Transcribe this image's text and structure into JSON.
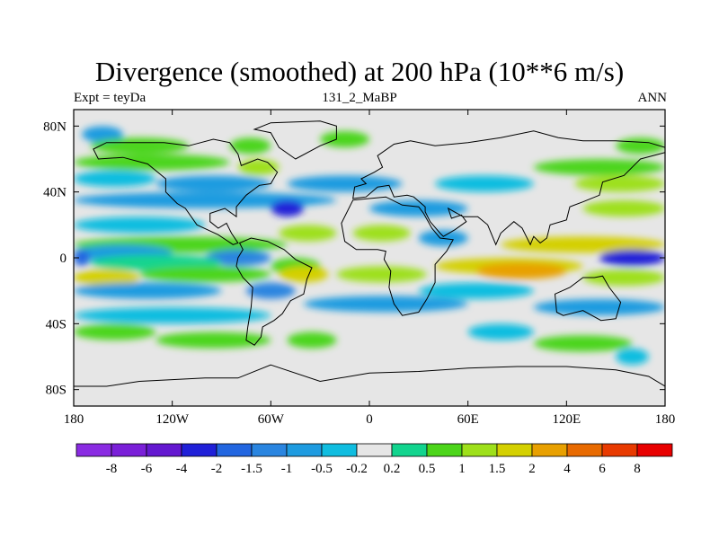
{
  "title": "Divergence (smoothed) at 200 hPa (10**6 m/s)",
  "subtitle_left": "Expt = teyDa",
  "subtitle_center": "131_2_MaBP",
  "subtitle_right": "ANN",
  "axes": {
    "lon_ticks": [
      {
        "lon": -180,
        "label": "180"
      },
      {
        "lon": -120,
        "label": "120W"
      },
      {
        "lon": -60,
        "label": "60W"
      },
      {
        "lon": 0,
        "label": "0"
      },
      {
        "lon": 60,
        "label": "60E"
      },
      {
        "lon": 120,
        "label": "120E"
      },
      {
        "lon": 180,
        "label": "180"
      }
    ],
    "lat_ticks": [
      {
        "lat": 80,
        "label": "80N"
      },
      {
        "lat": 40,
        "label": "40N"
      },
      {
        "lat": 0,
        "label": "0"
      },
      {
        "lat": -40,
        "label": "40S"
      },
      {
        "lat": -80,
        "label": "80S"
      }
    ],
    "lon_range": [
      -180,
      180
    ],
    "lat_range": [
      -90,
      90
    ]
  },
  "colorbar": {
    "colors": [
      "#8a2be2",
      "#7a1fd8",
      "#6418d0",
      "#2020d8",
      "#2266e0",
      "#2a85e0",
      "#1e9be0",
      "#10bde0",
      "#e6e6e6",
      "#12d48e",
      "#4cd51a",
      "#9ee01a",
      "#d4d000",
      "#e8a000",
      "#e86a00",
      "#e83a00",
      "#e80000"
    ],
    "labels": [
      "-8",
      "-6",
      "-4",
      "-2",
      "-1.5",
      "-1",
      "-0.5",
      "-0.2",
      "0.2",
      "0.5",
      "1",
      "1.5",
      "2",
      "4",
      "6",
      "8"
    ]
  },
  "field_bands": [
    {
      "lat": 75,
      "lon": [
        -175,
        -150
      ],
      "level": -0.8
    },
    {
      "lat": 72,
      "lon": [
        -30,
        0
      ],
      "level": 0.7
    },
    {
      "lat": 68,
      "lon": [
        -170,
        -110
      ],
      "level": 0.5
    },
    {
      "lat": 68,
      "lon": [
        -85,
        -60
      ],
      "level": 0.6
    },
    {
      "lat": 68,
      "lon": [
        150,
        180
      ],
      "level": 0.5
    },
    {
      "lat": 58,
      "lon": [
        -180,
        -85
      ],
      "level": 0.8
    },
    {
      "lat": 55,
      "lon": [
        -80,
        -55
      ],
      "level": 1.0
    },
    {
      "lat": 55,
      "lon": [
        100,
        180
      ],
      "level": 0.7
    },
    {
      "lat": 48,
      "lon": [
        -180,
        -130
      ],
      "level": -0.4
    },
    {
      "lat": 45,
      "lon": [
        -130,
        -60
      ],
      "level": -0.8
    },
    {
      "lat": 45,
      "lon": [
        -50,
        20
      ],
      "level": -0.6
    },
    {
      "lat": 45,
      "lon": [
        40,
        100
      ],
      "level": -0.5
    },
    {
      "lat": 45,
      "lon": [
        125,
        180
      ],
      "level": 1.2
    },
    {
      "lat": 35,
      "lon": [
        -180,
        -20
      ],
      "level": -0.7
    },
    {
      "lat": 30,
      "lon": [
        -60,
        -40
      ],
      "level": -2.5
    },
    {
      "lat": 30,
      "lon": [
        0,
        60
      ],
      "level": -0.8
    },
    {
      "lat": 30,
      "lon": [
        130,
        180
      ],
      "level": 1.0
    },
    {
      "lat": 20,
      "lon": [
        -180,
        -100
      ],
      "level": -0.4
    },
    {
      "lat": 15,
      "lon": [
        -55,
        -20
      ],
      "level": 1.0
    },
    {
      "lat": 15,
      "lon": [
        -10,
        25
      ],
      "level": 1.4
    },
    {
      "lat": 12,
      "lon": [
        30,
        60
      ],
      "level": -0.6
    },
    {
      "lat": 8,
      "lon": [
        -180,
        -50
      ],
      "level": 0.8
    },
    {
      "lat": 8,
      "lon": [
        80,
        180
      ],
      "level": 1.6
    },
    {
      "lat": 3,
      "lon": [
        -180,
        -120
      ],
      "level": -1.0
    },
    {
      "lat": 0,
      "lon": [
        -180,
        -170
      ],
      "level": -1.8
    },
    {
      "lat": 0,
      "lon": [
        -100,
        -60
      ],
      "level": -1.4
    },
    {
      "lat": 0,
      "lon": [
        140,
        180
      ],
      "level": -2.5
    },
    {
      "lat": -3,
      "lon": [
        -170,
        -90
      ],
      "level": 0.4
    },
    {
      "lat": -5,
      "lon": [
        -60,
        -30
      ],
      "level": 0.9
    },
    {
      "lat": -5,
      "lon": [
        40,
        130
      ],
      "level": 1.5
    },
    {
      "lat": -8,
      "lon": [
        65,
        120
      ],
      "level": 2.5
    },
    {
      "lat": -12,
      "lon": [
        -180,
        -140
      ],
      "level": 1.6
    },
    {
      "lat": -10,
      "lon": [
        -140,
        -60
      ],
      "level": 0.8
    },
    {
      "lat": -10,
      "lon": [
        -55,
        -25
      ],
      "level": 1.8
    },
    {
      "lat": -10,
      "lon": [
        -20,
        35
      ],
      "level": 1.2
    },
    {
      "lat": -12,
      "lon": [
        130,
        180
      ],
      "level": 1.2
    },
    {
      "lat": -20,
      "lon": [
        -180,
        -90
      ],
      "level": -0.6
    },
    {
      "lat": -20,
      "lon": [
        -75,
        -45
      ],
      "level": -1.5
    },
    {
      "lat": -20,
      "lon": [
        30,
        100
      ],
      "level": -0.5
    },
    {
      "lat": -28,
      "lon": [
        -40,
        60
      ],
      "level": -0.8
    },
    {
      "lat": -30,
      "lon": [
        100,
        180
      ],
      "level": -0.6
    },
    {
      "lat": -35,
      "lon": [
        -180,
        -60
      ],
      "level": -0.5
    },
    {
      "lat": -45,
      "lon": [
        -180,
        -130
      ],
      "level": 0.6
    },
    {
      "lat": -50,
      "lon": [
        -130,
        -60
      ],
      "level": 0.8
    },
    {
      "lat": -50,
      "lon": [
        -50,
        -20
      ],
      "level": 0.7
    },
    {
      "lat": -45,
      "lon": [
        60,
        100
      ],
      "level": -0.5
    },
    {
      "lat": -52,
      "lon": [
        100,
        160
      ],
      "level": 0.8
    },
    {
      "lat": -60,
      "lon": [
        150,
        170
      ],
      "level": -0.4
    }
  ],
  "landmasses": [
    [
      [
        -168,
        66
      ],
      [
        -160,
        70
      ],
      [
        -140,
        70
      ],
      [
        -125,
        70
      ],
      [
        -110,
        68
      ],
      [
        -95,
        72
      ],
      [
        -85,
        70
      ],
      [
        -80,
        63
      ],
      [
        -78,
        56
      ],
      [
        -68,
        60
      ],
      [
        -62,
        58
      ],
      [
        -56,
        52
      ],
      [
        -60,
        45
      ],
      [
        -67,
        44
      ],
      [
        -75,
        38
      ],
      [
        -81,
        31
      ],
      [
        -81,
        25
      ],
      [
        -88,
        30
      ],
      [
        -97,
        27
      ],
      [
        -97,
        22
      ],
      [
        -92,
        18
      ],
      [
        -87,
        21
      ],
      [
        -84,
        15
      ],
      [
        -80,
        9
      ],
      [
        -83,
        8
      ],
      [
        -92,
        14
      ],
      [
        -105,
        20
      ],
      [
        -112,
        30
      ],
      [
        -117,
        33
      ],
      [
        -124,
        40
      ],
      [
        -124,
        48
      ],
      [
        -135,
        57
      ],
      [
        -150,
        61
      ],
      [
        -165,
        60
      ],
      [
        -168,
        66
      ]
    ],
    [
      [
        -79,
        9
      ],
      [
        -72,
        12
      ],
      [
        -62,
        10
      ],
      [
        -52,
        5
      ],
      [
        -45,
        -1
      ],
      [
        -35,
        -6
      ],
      [
        -38,
        -13
      ],
      [
        -40,
        -22
      ],
      [
        -48,
        -26
      ],
      [
        -53,
        -34
      ],
      [
        -58,
        -38
      ],
      [
        -65,
        -42
      ],
      [
        -66,
        -48
      ],
      [
        -70,
        -53
      ],
      [
        -75,
        -50
      ],
      [
        -74,
        -42
      ],
      [
        -72,
        -30
      ],
      [
        -71,
        -18
      ],
      [
        -77,
        -12
      ],
      [
        -81,
        -5
      ],
      [
        -80,
        0
      ],
      [
        -77,
        5
      ],
      [
        -79,
        9
      ]
    ],
    [
      [
        -10,
        36
      ],
      [
        -9,
        43
      ],
      [
        -2,
        45
      ],
      [
        -5,
        48
      ],
      [
        3,
        52
      ],
      [
        8,
        55
      ],
      [
        5,
        62
      ],
      [
        15,
        69
      ],
      [
        25,
        71
      ],
      [
        40,
        68
      ],
      [
        60,
        70
      ],
      [
        80,
        73
      ],
      [
        100,
        77
      ],
      [
        115,
        73
      ],
      [
        130,
        71
      ],
      [
        150,
        71
      ],
      [
        170,
        70
      ],
      [
        180,
        67
      ],
      [
        180,
        64
      ],
      [
        165,
        60
      ],
      [
        160,
        55
      ],
      [
        155,
        50
      ],
      [
        142,
        46
      ],
      [
        140,
        38
      ],
      [
        130,
        34
      ],
      [
        122,
        31
      ],
      [
        120,
        23
      ],
      [
        110,
        20
      ],
      [
        108,
        12
      ],
      [
        104,
        9
      ],
      [
        100,
        13
      ],
      [
        98,
        8
      ],
      [
        93,
        18
      ],
      [
        88,
        22
      ],
      [
        80,
        15
      ],
      [
        77,
        8
      ],
      [
        72,
        20
      ],
      [
        66,
        25
      ],
      [
        57,
        25
      ],
      [
        48,
        30
      ],
      [
        50,
        24
      ],
      [
        56,
        26
      ],
      [
        59,
        22
      ],
      [
        52,
        17
      ],
      [
        45,
        13
      ],
      [
        43,
        15
      ],
      [
        37,
        22
      ],
      [
        34,
        28
      ],
      [
        34,
        31
      ],
      [
        27,
        37
      ],
      [
        23,
        38
      ],
      [
        15,
        37
      ],
      [
        12,
        44
      ],
      [
        5,
        43
      ],
      [
        -2,
        37
      ],
      [
        -10,
        36
      ]
    ],
    [
      [
        -17,
        21
      ],
      [
        -10,
        35
      ],
      [
        0,
        36
      ],
      [
        10,
        37
      ],
      [
        20,
        32
      ],
      [
        30,
        31
      ],
      [
        33,
        27
      ],
      [
        38,
        18
      ],
      [
        43,
        12
      ],
      [
        51,
        11
      ],
      [
        47,
        4
      ],
      [
        40,
        -4
      ],
      [
        40,
        -15
      ],
      [
        35,
        -25
      ],
      [
        30,
        -33
      ],
      [
        20,
        -35
      ],
      [
        15,
        -28
      ],
      [
        12,
        -18
      ],
      [
        13,
        -8
      ],
      [
        9,
        -1
      ],
      [
        10,
        4
      ],
      [
        5,
        5
      ],
      [
        -8,
        5
      ],
      [
        -15,
        10
      ],
      [
        -17,
        21
      ]
    ],
    [
      [
        113,
        -22
      ],
      [
        122,
        -18
      ],
      [
        130,
        -12
      ],
      [
        137,
        -12
      ],
      [
        142,
        -11
      ],
      [
        146,
        -18
      ],
      [
        153,
        -27
      ],
      [
        150,
        -37
      ],
      [
        141,
        -38
      ],
      [
        130,
        -32
      ],
      [
        118,
        -35
      ],
      [
        114,
        -33
      ],
      [
        113,
        -22
      ]
    ],
    [
      [
        -60,
        -65
      ],
      [
        -30,
        -75
      ],
      [
        0,
        -70
      ],
      [
        30,
        -69
      ],
      [
        60,
        -67
      ],
      [
        90,
        -66
      ],
      [
        120,
        -66
      ],
      [
        150,
        -68
      ],
      [
        170,
        -72
      ],
      [
        180,
        -78
      ],
      [
        180,
        -90
      ],
      [
        -180,
        -90
      ],
      [
        -180,
        -78
      ],
      [
        -160,
        -78
      ],
      [
        -140,
        -75
      ],
      [
        -100,
        -73
      ],
      [
        -80,
        -73
      ],
      [
        -60,
        -65
      ]
    ],
    [
      [
        -45,
        60
      ],
      [
        -55,
        67
      ],
      [
        -60,
        76
      ],
      [
        -70,
        78
      ],
      [
        -60,
        82
      ],
      [
        -30,
        83
      ],
      [
        -20,
        80
      ],
      [
        -20,
        72
      ],
      [
        -30,
        68
      ],
      [
        -45,
        60
      ]
    ]
  ]
}
